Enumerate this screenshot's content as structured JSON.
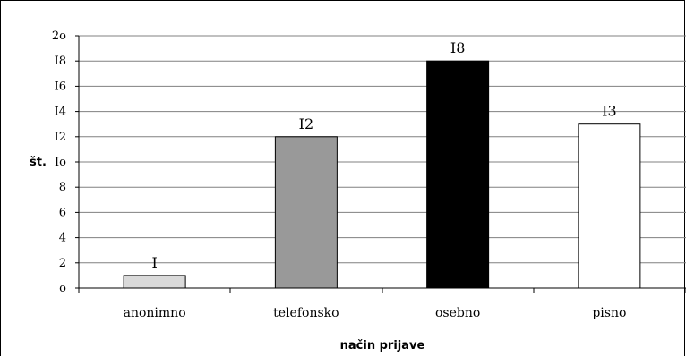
{
  "chart_data": {
    "type": "bar",
    "categories": [
      "anonimno",
      "telefonsko",
      "osebno",
      "pisno"
    ],
    "values": [
      1,
      12,
      18,
      13
    ],
    "data_labels": [
      "I",
      "I2",
      "I8",
      "I3"
    ],
    "bar_colors": [
      "#d9d9d9",
      "#999999",
      "#000000",
      "#ffffff"
    ],
    "title": "",
    "xlabel": "način prijave",
    "ylabel": "št.",
    "ylim": [
      0,
      20
    ],
    "yticks": [
      0,
      2,
      4,
      6,
      8,
      10,
      12,
      14,
      16,
      18,
      20
    ],
    "ytick_labels": [
      "o",
      "2",
      "4",
      "6",
      "8",
      "Io",
      "I2",
      "I4",
      "I6",
      "I8",
      "2o"
    ],
    "grid": true,
    "legend": "none"
  }
}
